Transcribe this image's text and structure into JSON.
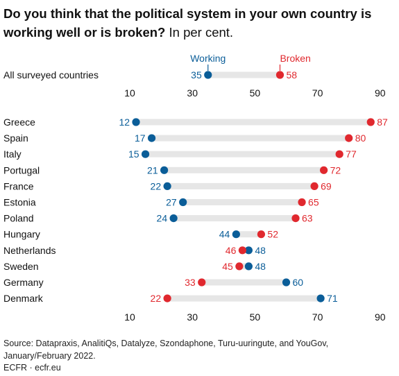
{
  "title": {
    "question": "Do you think that the political system in your own country is working well or is broken?",
    "unit": "In per cent."
  },
  "legend": {
    "working": "Working",
    "broken": "Broken"
  },
  "colors": {
    "working": "#0a5d98",
    "broken": "#e0282e",
    "track": "#e6e6e6",
    "text": "#111111"
  },
  "source": "Source: Datapraxis, AnalitiQs, Datalyze, Szondaphone, Turu-uuringute, and YouGov, January/February 2022.",
  "credit": "ECFR · ecfr.eu",
  "chart_data": {
    "type": "dumbbell",
    "xlim": [
      10,
      95
    ],
    "xticks": [
      10,
      30,
      50,
      70,
      90
    ],
    "series": [
      {
        "name": "Working",
        "color": "#0a5d98"
      },
      {
        "name": "Broken",
        "color": "#e0282e"
      }
    ],
    "summary": {
      "label": "All surveyed countries",
      "working": 35,
      "broken": 58
    },
    "countries": [
      {
        "label": "Greece",
        "working": 12,
        "broken": 87
      },
      {
        "label": "Spain",
        "working": 17,
        "broken": 80
      },
      {
        "label": "Italy",
        "working": 15,
        "broken": 77
      },
      {
        "label": "Portugal",
        "working": 21,
        "broken": 72
      },
      {
        "label": "France",
        "working": 22,
        "broken": 69
      },
      {
        "label": "Estonia",
        "working": 27,
        "broken": 65
      },
      {
        "label": "Poland",
        "working": 24,
        "broken": 63
      },
      {
        "label": "Hungary",
        "working": 44,
        "broken": 52
      },
      {
        "label": "Netherlands",
        "working": 48,
        "broken": 46
      },
      {
        "label": "Sweden",
        "working": 48,
        "broken": 45
      },
      {
        "label": "Germany",
        "working": 60,
        "broken": 33
      },
      {
        "label": "Denmark",
        "working": 71,
        "broken": 22
      }
    ]
  }
}
